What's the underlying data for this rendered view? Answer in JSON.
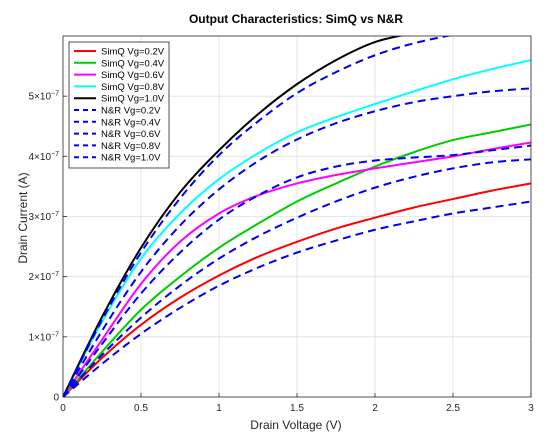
{
  "chart_data": {
    "type": "line",
    "title": "Output Characteristics: SimQ vs N&R",
    "xlabel": "Drain Voltage (V)",
    "ylabel": "Drain Current (A)",
    "xlim": [
      0,
      3
    ],
    "ylim": [
      0,
      6e-07
    ],
    "xticks": [
      0,
      0.5,
      1,
      1.5,
      2,
      2.5,
      3
    ],
    "xtick_labels": [
      "0",
      "0.5",
      "1",
      "1.5",
      "2",
      "2.5",
      "3"
    ],
    "yticks": [
      0,
      1e-07,
      2e-07,
      3e-07,
      4e-07,
      5e-07
    ],
    "ytick_mantissas": [
      "0",
      "1",
      "2",
      "3",
      "4",
      "5"
    ],
    "ytick_exponent_base": "×10",
    "ytick_exponent": "−7",
    "grid": true,
    "legend_position": "top-left",
    "x": [
      0,
      0.25,
      0.5,
      0.75,
      1,
      1.25,
      1.5,
      1.75,
      2,
      2.25,
      2.5,
      2.75,
      3
    ],
    "series": [
      {
        "name": "SimQ Vg=0.2V",
        "color": "#ff0000",
        "dash": "solid",
        "values": [
          0,
          6.5e-08,
          1.2e-07,
          1.65e-07,
          2.02e-07,
          2.33e-07,
          2.58e-07,
          2.8e-07,
          2.98e-07,
          3.15e-07,
          3.29e-07,
          3.43e-07,
          3.55e-07
        ]
      },
      {
        "name": "SimQ Vg=0.4V",
        "color": "#00cc00",
        "dash": "solid",
        "values": [
          0,
          7.5e-08,
          1.45e-07,
          2e-07,
          2.48e-07,
          2.88e-07,
          3.25e-07,
          3.55e-07,
          3.83e-07,
          4.07e-07,
          4.27e-07,
          4.4e-07,
          4.53e-07
        ]
      },
      {
        "name": "SimQ Vg=0.6V",
        "color": "#ff00ff",
        "dash": "solid",
        "values": [
          0,
          9.5e-08,
          1.88e-07,
          2.58e-07,
          3.05e-07,
          3.35e-07,
          3.55e-07,
          3.69e-07,
          3.8e-07,
          3.9e-07,
          4e-07,
          4.12e-07,
          4.23e-07
        ]
      },
      {
        "name": "SimQ Vg=0.8V",
        "color": "#00ffff",
        "dash": "solid",
        "values": [
          0,
          1.25e-07,
          2.3e-07,
          3.05e-07,
          3.62e-07,
          4.05e-07,
          4.4e-07,
          4.65e-07,
          4.87e-07,
          5.08e-07,
          5.28e-07,
          5.45e-07,
          5.6e-07
        ]
      },
      {
        "name": "SimQ Vg=1.0V",
        "color": "#000000",
        "dash": "solid",
        "values": [
          0,
          1.33e-07,
          2.48e-07,
          3.4e-07,
          4.1e-07,
          4.7e-07,
          5.2e-07,
          5.6e-07,
          5.9e-07,
          6.05e-07,
          null,
          null,
          null
        ]
      },
      {
        "name": "N&R Vg=0.2V",
        "color": "#0000ee",
        "dash": "dashed",
        "values": [
          0,
          5.5e-08,
          1.05e-07,
          1.48e-07,
          1.85e-07,
          2.15e-07,
          2.4e-07,
          2.6e-07,
          2.78e-07,
          2.92e-07,
          3.05e-07,
          3.15e-07,
          3.25e-07
        ]
      },
      {
        "name": "N&R Vg=0.4V",
        "color": "#0000ee",
        "dash": "dashed",
        "values": [
          0,
          7e-08,
          1.32e-07,
          1.85e-07,
          2.3e-07,
          2.67e-07,
          2.98e-07,
          3.25e-07,
          3.48e-07,
          3.66e-07,
          3.8e-07,
          3.9e-07,
          3.95e-07
        ]
      },
      {
        "name": "N&R Vg=0.6V",
        "color": "#0000ee",
        "dash": "dashed",
        "values": [
          0,
          8.8e-08,
          1.72e-07,
          2.4e-07,
          2.95e-07,
          3.35e-07,
          3.65e-07,
          3.83e-07,
          3.93e-07,
          3.98e-07,
          4.02e-07,
          4.1e-07,
          4.18e-07
        ]
      },
      {
        "name": "N&R Vg=0.8V",
        "color": "#0000ee",
        "dash": "dashed",
        "values": [
          0,
          1.1e-07,
          2.08e-07,
          2.85e-07,
          3.45e-07,
          3.92e-07,
          4.28e-07,
          4.55e-07,
          4.75e-07,
          4.9e-07,
          5e-07,
          5.08e-07,
          5.13e-07
        ]
      },
      {
        "name": "N&R Vg=1.0V",
        "color": "#0000ee",
        "dash": "dashed",
        "values": [
          0,
          1.28e-07,
          2.4e-07,
          3.3e-07,
          4.02e-07,
          4.58e-07,
          5.05e-07,
          5.4e-07,
          5.68e-07,
          5.88e-07,
          6.02e-07,
          null,
          null
        ]
      }
    ]
  }
}
